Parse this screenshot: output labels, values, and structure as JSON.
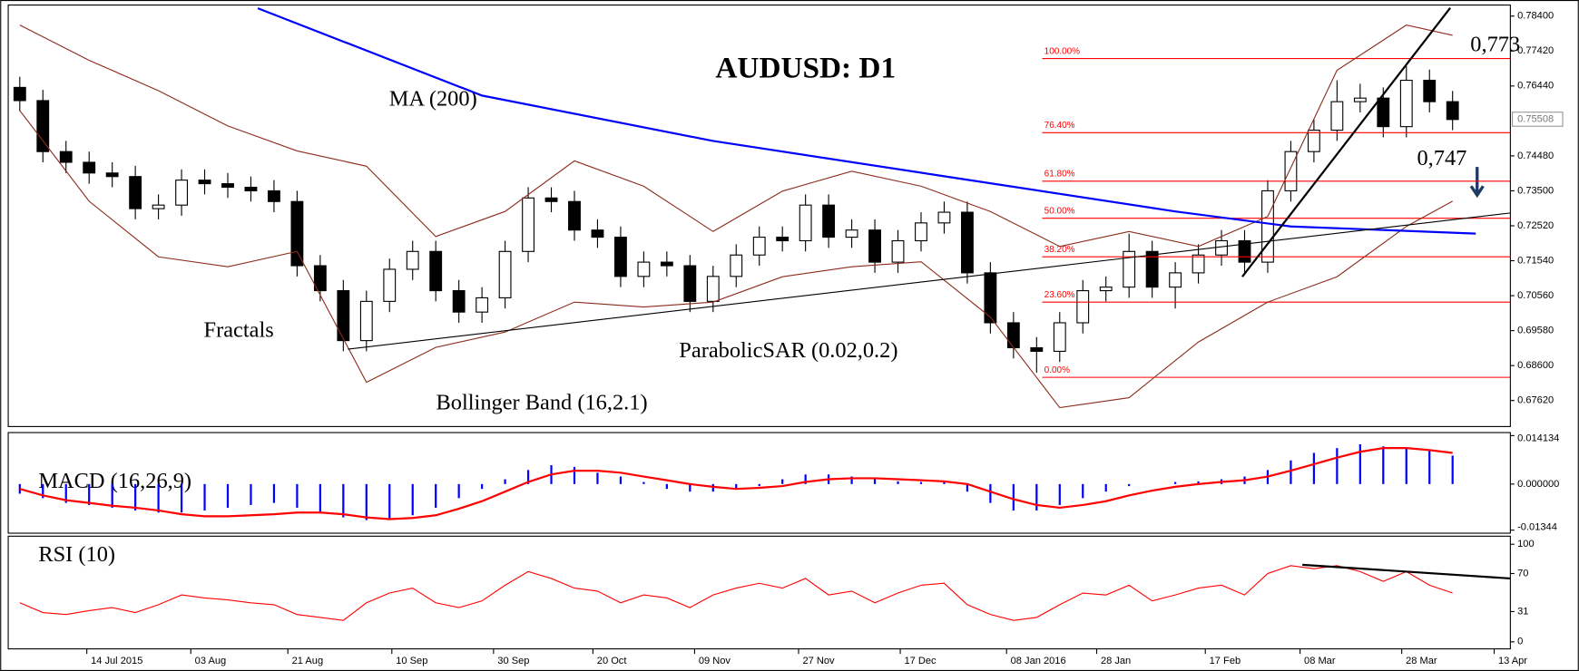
{
  "chart_data": [
    {
      "type": "candlestick",
      "title": "AUDUSD: D1",
      "xlim": [
        -0.5,
        64.5
      ],
      "ylim": [
        0.6689,
        0.7871
      ],
      "yticks": [
        {
          "value": 0.784,
          "label": "0.78400"
        },
        {
          "value": 0.7742,
          "label": "0.77420"
        },
        {
          "value": 0.7644,
          "label": "0.76440"
        },
        {
          "value": 0.7448,
          "label": "0.74480"
        },
        {
          "value": 0.735,
          "label": "0.73500"
        },
        {
          "value": 0.7252,
          "label": "0.72520"
        },
        {
          "value": 0.7154,
          "label": "0.71540"
        },
        {
          "value": 0.7056,
          "label": "0.70560"
        },
        {
          "value": 0.6958,
          "label": "0.69580"
        },
        {
          "value": 0.686,
          "label": "0.68600"
        },
        {
          "value": 0.6762,
          "label": "0.67620"
        }
      ],
      "up_color": "#ffffff",
      "down_color": "#000000",
      "open": [
        0.764,
        0.7603,
        0.746,
        0.743,
        0.74,
        0.739,
        0.73,
        0.731,
        0.738,
        0.737,
        0.736,
        0.735,
        0.732,
        0.714,
        0.707,
        0.693,
        0.704,
        0.713,
        0.718,
        0.707,
        0.701,
        0.705,
        0.718,
        0.733,
        0.732,
        0.724,
        0.722,
        0.711,
        0.715,
        0.714,
        0.704,
        0.711,
        0.717,
        0.722,
        0.721,
        0.731,
        0.722,
        0.724,
        0.715,
        0.721,
        0.726,
        0.729,
        0.712,
        0.698,
        0.691,
        0.69,
        0.698,
        0.707,
        0.708,
        0.718,
        0.708,
        0.712,
        0.717,
        0.721,
        0.715,
        0.735,
        0.746,
        0.752,
        0.76,
        0.761,
        0.753,
        0.766,
        0.76
      ],
      "high": [
        0.767,
        0.7633,
        0.749,
        0.746,
        0.743,
        0.742,
        0.734,
        0.741,
        0.741,
        0.74,
        0.739,
        0.738,
        0.735,
        0.717,
        0.71,
        0.707,
        0.716,
        0.721,
        0.721,
        0.71,
        0.708,
        0.721,
        0.736,
        0.736,
        0.735,
        0.727,
        0.725,
        0.718,
        0.718,
        0.717,
        0.714,
        0.72,
        0.725,
        0.725,
        0.734,
        0.734,
        0.727,
        0.727,
        0.724,
        0.729,
        0.732,
        0.732,
        0.715,
        0.701,
        0.694,
        0.701,
        0.71,
        0.711,
        0.723,
        0.721,
        0.715,
        0.72,
        0.724,
        0.724,
        0.738,
        0.749,
        0.755,
        0.766,
        0.765,
        0.764,
        0.77,
        0.769,
        0.763
      ],
      "low": [
        0.7573,
        0.743,
        0.74,
        0.737,
        0.736,
        0.727,
        0.727,
        0.728,
        0.734,
        0.733,
        0.732,
        0.729,
        0.711,
        0.704,
        0.69,
        0.69,
        0.701,
        0.71,
        0.704,
        0.698,
        0.698,
        0.702,
        0.715,
        0.729,
        0.721,
        0.719,
        0.708,
        0.708,
        0.711,
        0.701,
        0.701,
        0.708,
        0.714,
        0.718,
        0.718,
        0.719,
        0.719,
        0.712,
        0.712,
        0.718,
        0.723,
        0.709,
        0.695,
        0.688,
        0.684,
        0.687,
        0.695,
        0.704,
        0.705,
        0.705,
        0.702,
        0.709,
        0.714,
        0.712,
        0.712,
        0.732,
        0.743,
        0.749,
        0.757,
        0.75,
        0.75,
        0.757,
        0.752
      ],
      "close": [
        0.7603,
        0.746,
        0.743,
        0.74,
        0.739,
        0.73,
        0.731,
        0.738,
        0.737,
        0.736,
        0.735,
        0.732,
        0.714,
        0.707,
        0.693,
        0.704,
        0.713,
        0.718,
        0.707,
        0.701,
        0.705,
        0.718,
        0.733,
        0.732,
        0.724,
        0.722,
        0.711,
        0.715,
        0.714,
        0.704,
        0.711,
        0.717,
        0.722,
        0.721,
        0.731,
        0.722,
        0.724,
        0.715,
        0.721,
        0.726,
        0.729,
        0.712,
        0.698,
        0.691,
        0.69,
        0.698,
        0.707,
        0.708,
        0.718,
        0.708,
        0.712,
        0.717,
        0.721,
        0.715,
        0.735,
        0.746,
        0.752,
        0.76,
        0.761,
        0.753,
        0.766,
        0.76,
        0.755
      ],
      "lines": [
        {
          "color": "#8b2c1b",
          "width": 1,
          "x": [
            0,
            3,
            6,
            9,
            12,
            15,
            18,
            21,
            24,
            27,
            30,
            33,
            36,
            39,
            42,
            45,
            48,
            51,
            54,
            57,
            60,
            62
          ],
          "values": [
            0.7815,
            0.7716,
            0.7631,
            0.7532,
            0.7462,
            0.7419,
            0.7222,
            0.7292,
            0.7434,
            0.7363,
            0.7236,
            0.7349,
            0.7405,
            0.7363,
            0.7292,
            0.7194,
            0.7236,
            0.7194,
            0.7278,
            0.7688,
            0.7815,
            0.7786
          ]
        },
        {
          "color": "#8b2c1b",
          "width": 1,
          "x": [
            0,
            3,
            6,
            9,
            12,
            15,
            18,
            21,
            24,
            27,
            30,
            33,
            36,
            39,
            42,
            45,
            48,
            51,
            54,
            57,
            60,
            62
          ],
          "values": [
            0.7575,
            0.7321,
            0.7165,
            0.7137,
            0.718,
            0.6813,
            0.6911,
            0.6954,
            0.7038,
            0.7024,
            0.7038,
            0.7109,
            0.7137,
            0.7151,
            0.6996,
            0.6742,
            0.677,
            0.6926,
            0.7038,
            0.7109,
            0.725,
            0.7321
          ]
        },
        {
          "color": "#0000ff",
          "width": 2,
          "x": [
            10.3,
            20,
            30,
            40,
            50,
            55,
            63
          ],
          "values": [
            0.7862,
            0.7617,
            0.749,
            0.7391,
            0.7292,
            0.725,
            0.723
          ]
        },
        {
          "color": "#000000",
          "width": 1,
          "x": [
            14.2,
            64.5
          ],
          "values": [
            0.6906,
            0.7288
          ]
        },
        {
          "color": "#000000",
          "width": 2,
          "x": [
            52.9,
            61.9
          ],
          "values": [
            0.7109,
            0.7863
          ]
        }
      ],
      "fib_color": "#ff0000",
      "fib_levels": [
        {
          "value": 0.7721,
          "label": "100.00%"
        },
        {
          "value": 0.7513,
          "label": "76.40%"
        },
        {
          "value": 0.7377,
          "label": "61.80%"
        },
        {
          "value": 0.7273,
          "label": "50.00%"
        },
        {
          "value": 0.7165,
          "label": "38.20%"
        },
        {
          "value": 0.7038,
          "label": "23.60%"
        },
        {
          "value": 0.6827,
          "label": "0.00%"
        }
      ],
      "last_price": {
        "value": 0.75508,
        "label": "0.75508"
      },
      "annotations": [
        "MA (200)",
        "Fractals",
        "ParabolicSAR (0.02,0.2)",
        "Bollinger Band (16,2.1)",
        "0,773",
        "0,747"
      ]
    },
    {
      "type": "bar",
      "title": "MACD (16,26,9)",
      "xlim": [
        -0.5,
        64.5
      ],
      "ylim": [
        -0.01344,
        0.014134
      ],
      "yticks": [
        {
          "value": 0.014134,
          "label": "0.014134"
        },
        {
          "value": 0,
          "label": "0.000000"
        },
        {
          "value": -0.01344,
          "label": "-0.01344"
        }
      ],
      "series": [
        {
          "color": "#0000ff",
          "values": [
            -0.0028,
            -0.0041,
            -0.0055,
            -0.0061,
            -0.0069,
            -0.0077,
            -0.0083,
            -0.0083,
            -0.0077,
            -0.0069,
            -0.0061,
            -0.0055,
            -0.0069,
            -0.0083,
            -0.0097,
            -0.0105,
            -0.0105,
            -0.0091,
            -0.0069,
            -0.0041,
            -0.0014,
            0.0014,
            0.0041,
            0.0055,
            0.005,
            0.0033,
            0.0022,
            0.0006,
            -0.0014,
            -0.0022,
            -0.0022,
            -0.0014,
            -0.0006,
            0.0014,
            0.0028,
            0.0028,
            0.0022,
            0.0014,
            0.0008,
            0.0006,
            0.0008,
            -0.0022,
            -0.0055,
            -0.0077,
            -0.0077,
            -0.0061,
            -0.0041,
            -0.0022,
            -0.0006,
            0,
            0.0006,
            0.0008,
            0.0014,
            0.0022,
            0.0041,
            0.0069,
            0.0091,
            0.0105,
            0.0116,
            0.011,
            0.0105,
            0.0097,
            0.0083
          ]
        },
        {
          "color": "#ff0000",
          "kind": "line",
          "values": [
            -0.0014,
            -0.0033,
            -0.0047,
            -0.0055,
            -0.0063,
            -0.0069,
            -0.0077,
            -0.0088,
            -0.0094,
            -0.0094,
            -0.0091,
            -0.0088,
            -0.0083,
            -0.0083,
            -0.0088,
            -0.0097,
            -0.0102,
            -0.0099,
            -0.0091,
            -0.0072,
            -0.005,
            -0.0022,
            0.0006,
            0.0028,
            0.0039,
            0.0039,
            0.0033,
            0.0022,
            0.0011,
            0,
            -0.0008,
            -0.0014,
            -0.0011,
            -0.0006,
            0.0006,
            0.0014,
            0.0017,
            0.0017,
            0.0014,
            0.0011,
            0.0008,
            0,
            -0.0022,
            -0.0044,
            -0.0061,
            -0.0069,
            -0.0061,
            -0.005,
            -0.0033,
            -0.0019,
            -0.0008,
            0,
            0.0006,
            0.0011,
            0.0022,
            0.0039,
            0.0058,
            0.0077,
            0.0094,
            0.0105,
            0.0105,
            0.0099,
            0.0091
          ]
        }
      ]
    },
    {
      "type": "line",
      "title": "RSI (10)",
      "xlim": [
        -0.5,
        64.5
      ],
      "ylim": [
        0,
        100
      ],
      "yticks": [
        100,
        70,
        31,
        0
      ],
      "xticks": [
        {
          "value": 2.9,
          "label": "14 Jul 2015"
        },
        {
          "value": 7.4,
          "label": "03 Aug"
        },
        {
          "value": 11.6,
          "label": "21 Aug"
        },
        {
          "value": 16.1,
          "label": "10 Sep"
        },
        {
          "value": 20.5,
          "label": "30 Sep"
        },
        {
          "value": 24.8,
          "label": "20 Oct"
        },
        {
          "value": 29.2,
          "label": "09 Nov"
        },
        {
          "value": 33.7,
          "label": "27 Nov"
        },
        {
          "value": 38.1,
          "label": "17 Dec"
        },
        {
          "value": 42.7,
          "label": "08 Jan 2016"
        },
        {
          "value": 46.6,
          "label": "28 Jan"
        },
        {
          "value": 51.3,
          "label": "17 Feb"
        },
        {
          "value": 55.4,
          "label": "08 Mar"
        },
        {
          "value": 59.8,
          "label": "28 Mar"
        },
        {
          "value": 63.8,
          "label": "13 Apr"
        }
      ],
      "series": [
        {
          "color": "#ff0000",
          "values": [
            40,
            30,
            28,
            32,
            35,
            30,
            38,
            48,
            45,
            43,
            40,
            38,
            28,
            25,
            22,
            40,
            50,
            55,
            40,
            35,
            42,
            58,
            72,
            65,
            55,
            52,
            40,
            48,
            45,
            35,
            48,
            55,
            60,
            55,
            65,
            48,
            52,
            40,
            50,
            58,
            60,
            38,
            28,
            22,
            25,
            38,
            50,
            48,
            58,
            42,
            48,
            55,
            58,
            48,
            70,
            78,
            75,
            78,
            72,
            62,
            72,
            58,
            50
          ]
        }
      ],
      "lines": [
        {
          "color": "#000000",
          "width": 2,
          "x": [
            55.5,
            64.5
          ],
          "values": [
            79,
            65
          ]
        }
      ]
    }
  ]
}
